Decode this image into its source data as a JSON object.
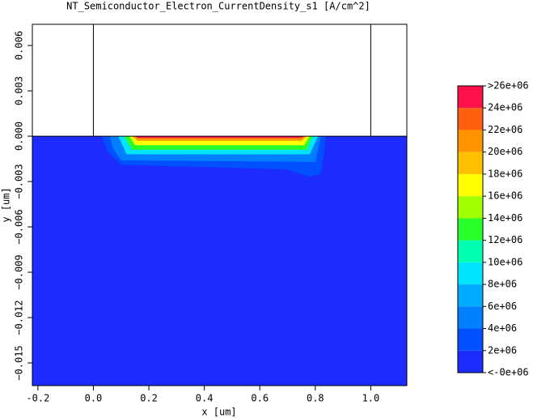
{
  "chart_data": {
    "type": "contour",
    "title": "NT_Semiconductor_Electron_CurrentDensity_s1 [A/cm^2]",
    "x_label": "x [um]",
    "y_label": "y [um]",
    "xlim": [
      -0.22,
      1.13
    ],
    "ylim": [
      -0.0165,
      0.0074
    ],
    "xticks": [
      -0.2,
      {
        "value": 0,
        "label": "0.0"
      },
      0.2,
      0.4,
      0.6,
      0.8,
      {
        "value": 1,
        "label": "1.0"
      }
    ],
    "yticks": [
      {
        "value": 0.006,
        "label": "0.006"
      },
      {
        "value": 0.003,
        "label": "0.003"
      },
      {
        "value": 0,
        "label": "0.000"
      },
      {
        "value": -0.003,
        "label": "−0.003"
      },
      {
        "value": -0.006,
        "label": "−0.006"
      },
      {
        "value": -0.009,
        "label": "−0.009"
      },
      {
        "value": -0.012,
        "label": "−0.012"
      },
      {
        "value": -0.015,
        "label": "−0.015"
      }
    ],
    "colorbar": {
      "labels": [
        "<-0e+06",
        "2e+06",
        "4e+06",
        "6e+06",
        "8e+06",
        "10e+06",
        "12e+06",
        "14e+06",
        "16e+06",
        "18e+06",
        "20e+06",
        "22e+06",
        "24e+06",
        ">26e+06"
      ],
      "colors": [
        "#1c2cff",
        "#0050ff",
        "#0080ff",
        "#00aaff",
        "#00e4ff",
        "#00ffb0",
        "#28ff28",
        "#a0ff00",
        "#ffff00",
        "#ffc000",
        "#ff9400",
        "#ff6010",
        "#ff1048"
      ]
    },
    "contours": [
      {
        "level": 1,
        "points": [
          [
            0.03,
            0
          ],
          [
            0.84,
            0
          ],
          [
            0.82,
            -0.0025
          ],
          [
            0.78,
            -0.0027
          ],
          [
            0.7,
            -0.0022
          ],
          [
            0.1,
            -0.0019
          ],
          [
            0.05,
            -0.001
          ]
        ]
      },
      {
        "level": 2,
        "points": [
          [
            0.06,
            0
          ],
          [
            0.82,
            0
          ],
          [
            0.8,
            -0.0017
          ],
          [
            0.1,
            -0.0016
          ],
          [
            0.07,
            -0.0008
          ]
        ]
      },
      {
        "level": 4,
        "points": [
          [
            0.09,
            0
          ],
          [
            0.81,
            0
          ],
          [
            0.78,
            -0.0012
          ],
          [
            0.12,
            -0.0012
          ]
        ]
      },
      {
        "level": 6,
        "points": [
          [
            0.11,
            0
          ],
          [
            0.79,
            0
          ],
          [
            0.77,
            -0.0009
          ],
          [
            0.14,
            -0.0009
          ]
        ]
      },
      {
        "level": 8,
        "points": [
          [
            0.13,
            0
          ],
          [
            0.78,
            0
          ],
          [
            0.76,
            -0.0006
          ],
          [
            0.15,
            -0.0006
          ]
        ]
      },
      {
        "level": 10,
        "points": [
          [
            0.14,
            0
          ],
          [
            0.77,
            0
          ],
          [
            0.75,
            -0.0003
          ],
          [
            0.16,
            -0.0003
          ]
        ]
      },
      {
        "level": 12,
        "points": [
          [
            0.15,
            0
          ],
          [
            0.76,
            0
          ],
          [
            0.75,
            -0.00012
          ],
          [
            0.16,
            -0.00012
          ]
        ]
      }
    ]
  }
}
